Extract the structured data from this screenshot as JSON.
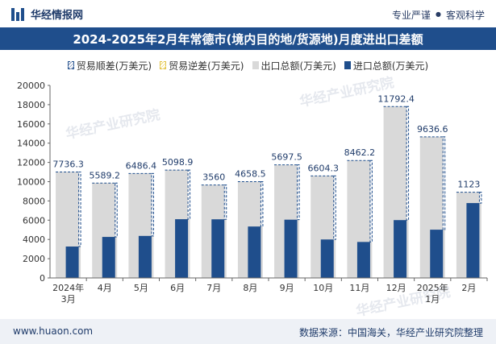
{
  "header": {
    "brand": "华经情报网",
    "tag_left": "专业严谨",
    "tag_sep": "●",
    "tag_right": "客观科学"
  },
  "footer": {
    "website": "www.huaon.com",
    "source": "数据来源：中国海关，华经产业研究院整理"
  },
  "watermark": {
    "text": "华经产业研究院"
  },
  "colors": {
    "export": "#d9d9d9",
    "import": "#1f4e8c",
    "surplus_border": "#1f4e8c",
    "title_bar": "#1f4e8c"
  },
  "chart_data": {
    "type": "bar",
    "title": "2024-2025年2月年常德市(境内目的地/货源地)月度进出口差额",
    "legend": [
      "贸易顺差(万美元)",
      "贸易逆差(万美元)",
      "出口总额(万美元)",
      "进口总额(万美元)"
    ],
    "categories": [
      "2024年\n3月",
      "4月",
      "5月",
      "6月",
      "7月",
      "8月",
      "9月",
      "10月",
      "11月",
      "12月",
      "2025年\n1月",
      "2月"
    ],
    "ylim": [
      0,
      20000
    ],
    "yticks": [
      0,
      2000,
      4000,
      6000,
      8000,
      10000,
      12000,
      14000,
      16000,
      18000,
      20000
    ],
    "series": [
      {
        "name": "出口总额(万美元)",
        "values": [
          11000,
          9850,
          10850,
          11200,
          9650,
          10000,
          11750,
          10600,
          12200,
          17800,
          14650,
          8900
        ]
      },
      {
        "name": "进口总额(万美元)",
        "values": [
          3264,
          4261,
          4364,
          6101,
          6090,
          5342,
          6052,
          3996,
          3738,
          6008,
          5013,
          7777
        ]
      },
      {
        "name": "贸易顺差(万美元)",
        "values": [
          7736.3,
          5589.2,
          6486.4,
          5098.9,
          3560,
          4658.5,
          5697.5,
          6604.3,
          8462.2,
          11792.4,
          9636.6,
          1123
        ]
      }
    ],
    "data_labels": [
      "7736.3",
      "5589.2",
      "6486.4",
      "5098.9",
      "3560",
      "4658.5",
      "5697.5",
      "6604.3",
      "8462.2",
      "11792.4",
      "9636.6",
      "1123"
    ]
  }
}
